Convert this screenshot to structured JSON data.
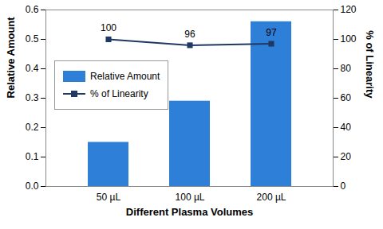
{
  "chart_data": {
    "type": "bar",
    "categories": [
      "50 µL",
      "100 µL",
      "200 µL"
    ],
    "x_label": "Different Plasma Volumes",
    "y_label": "Relative Amount",
    "y2_label": "% of Linearity",
    "series": [
      {
        "name": "Relative Amount",
        "type": "bar",
        "color": "#2e7fd8",
        "values": [
          0.15,
          0.29,
          0.56
        ]
      },
      {
        "name": "% of Linearity",
        "type": "line",
        "axis": "y2",
        "color": "#1f3864",
        "marker": "square",
        "data_labels": true,
        "values": [
          100,
          96,
          97
        ]
      }
    ],
    "ylim": [
      0,
      0.6
    ],
    "yticks": [
      {
        "value": 0,
        "label": "0.0"
      },
      0.1,
      0.2,
      0.3,
      0.4,
      0.5,
      0.6
    ],
    "y2lim": [
      0,
      120
    ],
    "y2ticks": [
      0,
      20,
      40,
      60,
      80,
      100,
      120
    ],
    "legend": "left"
  }
}
